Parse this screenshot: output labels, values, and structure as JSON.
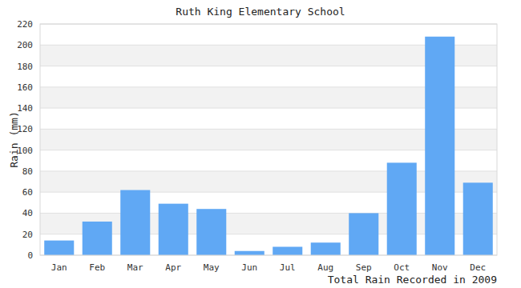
{
  "chart_data": {
    "type": "bar",
    "title": "Ruth King Elementary School",
    "y_label": "Rain (mm)",
    "x_label": "Total Rain Recorded in 2009",
    "categories": [
      "Jan",
      "Feb",
      "Mar",
      "Apr",
      "May",
      "Jun",
      "Jul",
      "Aug",
      "Sep",
      "Oct",
      "Nov",
      "Dec"
    ],
    "values": [
      14,
      32,
      62,
      49,
      44,
      4,
      8,
      12,
      40,
      88,
      208,
      69
    ],
    "color": "#60a8f4",
    "ylim": [
      0,
      220
    ],
    "yticks": [
      0,
      20,
      40,
      60,
      80,
      100,
      120,
      140,
      160,
      180,
      200,
      220
    ],
    "grid": true
  }
}
